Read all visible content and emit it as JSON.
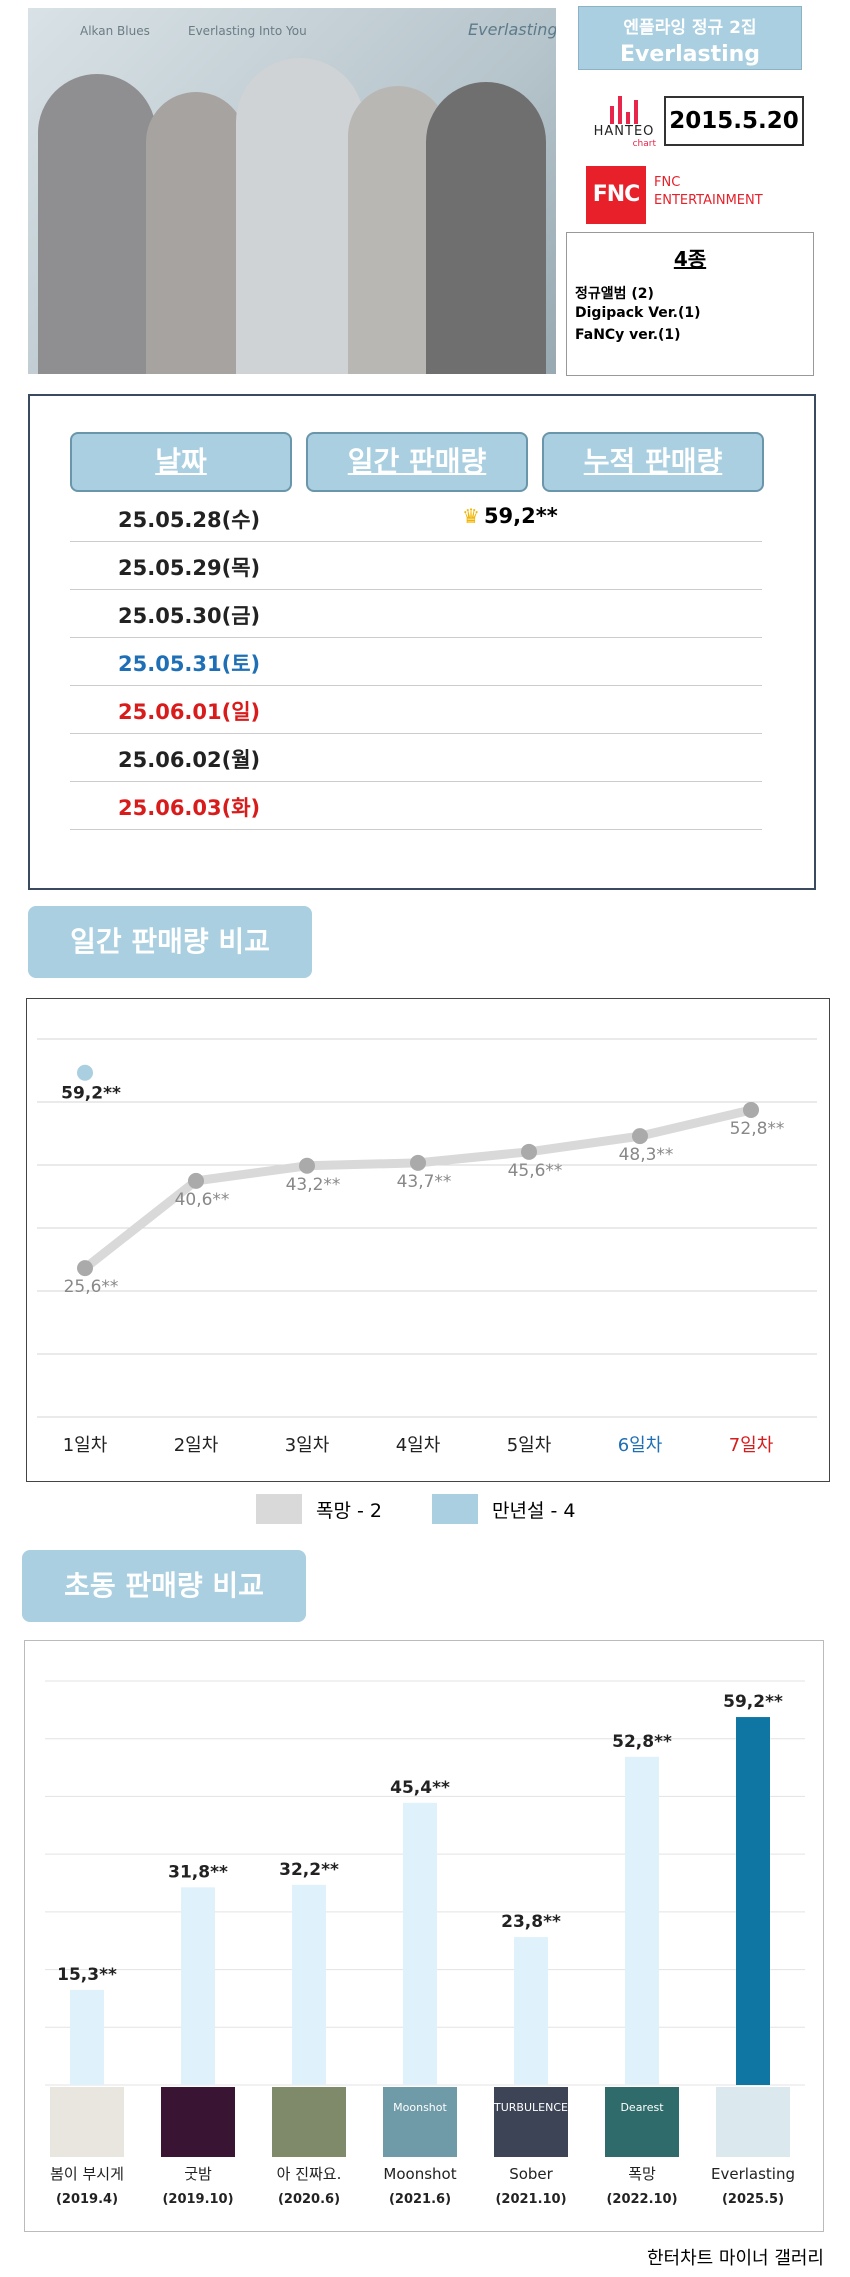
{
  "header": {
    "photo_captions": [
      "Alkan Blues",
      "Everlasting Into You",
      "Everlasting"
    ],
    "album_sub": "엔플라잉 정규 2집",
    "album_title": "Everlasting",
    "hanteo_name": "HANTEO",
    "hanteo_chart": "chart",
    "release_date": "2015.5.20",
    "fnc_logo": "FNC",
    "fnc_line1": "FNC",
    "fnc_line2": "ENTERTAINMENT",
    "edition_count": "4종",
    "editions": [
      "정규앨범 (2)",
      "Digipack Ver.(1)",
      "FaNCy ver.(1)"
    ]
  },
  "sales_table": {
    "headers": [
      "날짜",
      "일간 판매량",
      "누적 판매량"
    ],
    "rows": [
      {
        "date": "25.05.28(수)",
        "daily": "59,2**",
        "crown": true,
        "color": "#222222"
      },
      {
        "date": "25.05.29(목)",
        "daily": "",
        "crown": false,
        "color": "#222222"
      },
      {
        "date": "25.05.30(금)",
        "daily": "",
        "crown": false,
        "color": "#222222"
      },
      {
        "date": "25.05.31(토)",
        "daily": "",
        "crown": false,
        "color": "#1e6fb5"
      },
      {
        "date": "25.06.01(일)",
        "daily": "",
        "crown": false,
        "color": "#d81b1b"
      },
      {
        "date": "25.06.02(월)",
        "daily": "",
        "crown": false,
        "color": "#222222"
      },
      {
        "date": "25.06.03(화)",
        "daily": "",
        "crown": false,
        "color": "#d81b1b"
      }
    ]
  },
  "daily_section_title": "일간 판매량 비교",
  "weekly_section_title": "초동 판매량 비교",
  "credit": "한터차트 마이너 갤러리",
  "colors": {
    "accent": "#a9cfe0",
    "grey_line": "#d9d9d9",
    "grey_point": "#aaaaaa",
    "highlight_bar": "#0f75a3",
    "light_bar": "#dff1fa"
  },
  "chart_data": [
    {
      "type": "line",
      "categories": [
        "1일차",
        "2일차",
        "3일차",
        "4일차",
        "5일차",
        "6일차",
        "7일차"
      ],
      "category_colors": [
        "#222222",
        "#222222",
        "#222222",
        "#222222",
        "#222222",
        "#1e6fb5",
        "#d81b1b"
      ],
      "series": [
        {
          "name": "폭망 - 2",
          "values": [
            25.6,
            40.6,
            43.2,
            43.7,
            45.6,
            48.3,
            52.8
          ],
          "labels": [
            "25,6**",
            "40,6**",
            "43,2**",
            "43,7**",
            "45,6**",
            "48,3**",
            "52,8**"
          ],
          "color": "#d9d9d9"
        },
        {
          "name": "만년설 - 4",
          "values": [
            59.2,
            null,
            null,
            null,
            null,
            null,
            null
          ],
          "labels": [
            "59,2**",
            "",
            "",
            "",
            "",
            "",
            ""
          ],
          "color": "#a9cfe0"
        }
      ],
      "ylim": [
        0,
        65
      ],
      "grid": true,
      "legend": "bottom"
    },
    {
      "type": "bar",
      "categories": [
        "봄이 부시게",
        "굿밤",
        "아 진짜요.",
        "Moonshot",
        "Sober",
        "폭망",
        "Everlasting"
      ],
      "dates": [
        "(2019.4)",
        "(2019.10)",
        "(2020.6)",
        "(2021.6)",
        "(2021.10)",
        "(2022.10)",
        "(2025.5)"
      ],
      "values": [
        15.3,
        31.8,
        32.2,
        45.4,
        23.8,
        52.8,
        59.2
      ],
      "labels": [
        "15,3**",
        "31,8**",
        "32,2**",
        "45,4**",
        "23,8**",
        "52,8**",
        "59,2**"
      ],
      "cover_text": [
        "",
        "",
        "",
        "Moonshot",
        "TURBULENCE",
        "Dearest",
        ""
      ],
      "cover_colors": [
        "#e9e6e0",
        "#3a1533",
        "#7e8a6a",
        "#6f9aa8",
        "#3d4456",
        "#2e6b6a",
        "#dbe9ef"
      ],
      "highlight_index": 6,
      "ylim": [
        0,
        65
      ],
      "grid": true
    }
  ]
}
